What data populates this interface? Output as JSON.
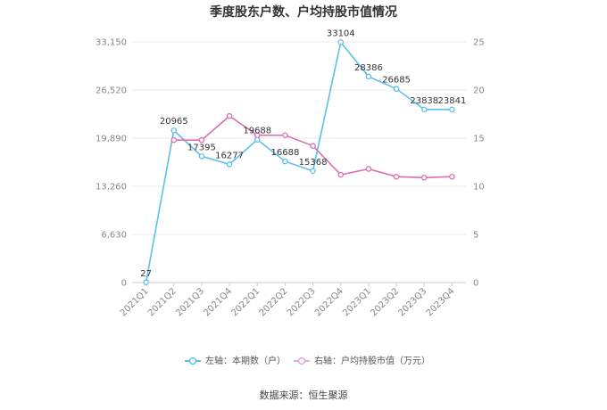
{
  "chart_data": {
    "type": "line",
    "title": "季度股东户数、户均持股市值情况",
    "categories": [
      "2021Q1",
      "2021Q2",
      "2021Q3",
      "2021Q4",
      "2022Q1",
      "2022Q2",
      "2022Q3",
      "2022Q4",
      "2023Q1",
      "2023Q2",
      "2023Q3",
      "2023Q4"
    ],
    "left_axis": {
      "ticks": [
        "0",
        "6,630",
        "13,260",
        "19,890",
        "26,520",
        "33,150"
      ],
      "ylim": [
        0,
        33150
      ]
    },
    "right_axis": {
      "ticks": [
        "0",
        "5",
        "10",
        "15",
        "20",
        "25"
      ],
      "ylim": [
        0,
        25
      ]
    },
    "series": [
      {
        "name": "左轴：本期数（户）",
        "axis": "left",
        "color": "#5bc0eb",
        "values": [
          27,
          20965,
          17395,
          16277,
          19688,
          16688,
          15368,
          33104,
          28386,
          26685,
          23838,
          23841
        ],
        "labels": [
          "27",
          "20965",
          "17395",
          "16277",
          "19688",
          "16688",
          "15368",
          "33104",
          "28386",
          "26685",
          "23838",
          "23841"
        ]
      },
      {
        "name": "右轴：户均持股市值（万元）",
        "axis": "right",
        "color": "#d970b0",
        "values": [
          null,
          14.8,
          14.8,
          17.3,
          15.3,
          15.3,
          14.2,
          11.2,
          11.8,
          11.0,
          10.9,
          11.0
        ]
      }
    ],
    "grid": "horizontal",
    "legend": "bottom-center"
  },
  "footer": {
    "source": "数据来源：恒生聚源"
  }
}
